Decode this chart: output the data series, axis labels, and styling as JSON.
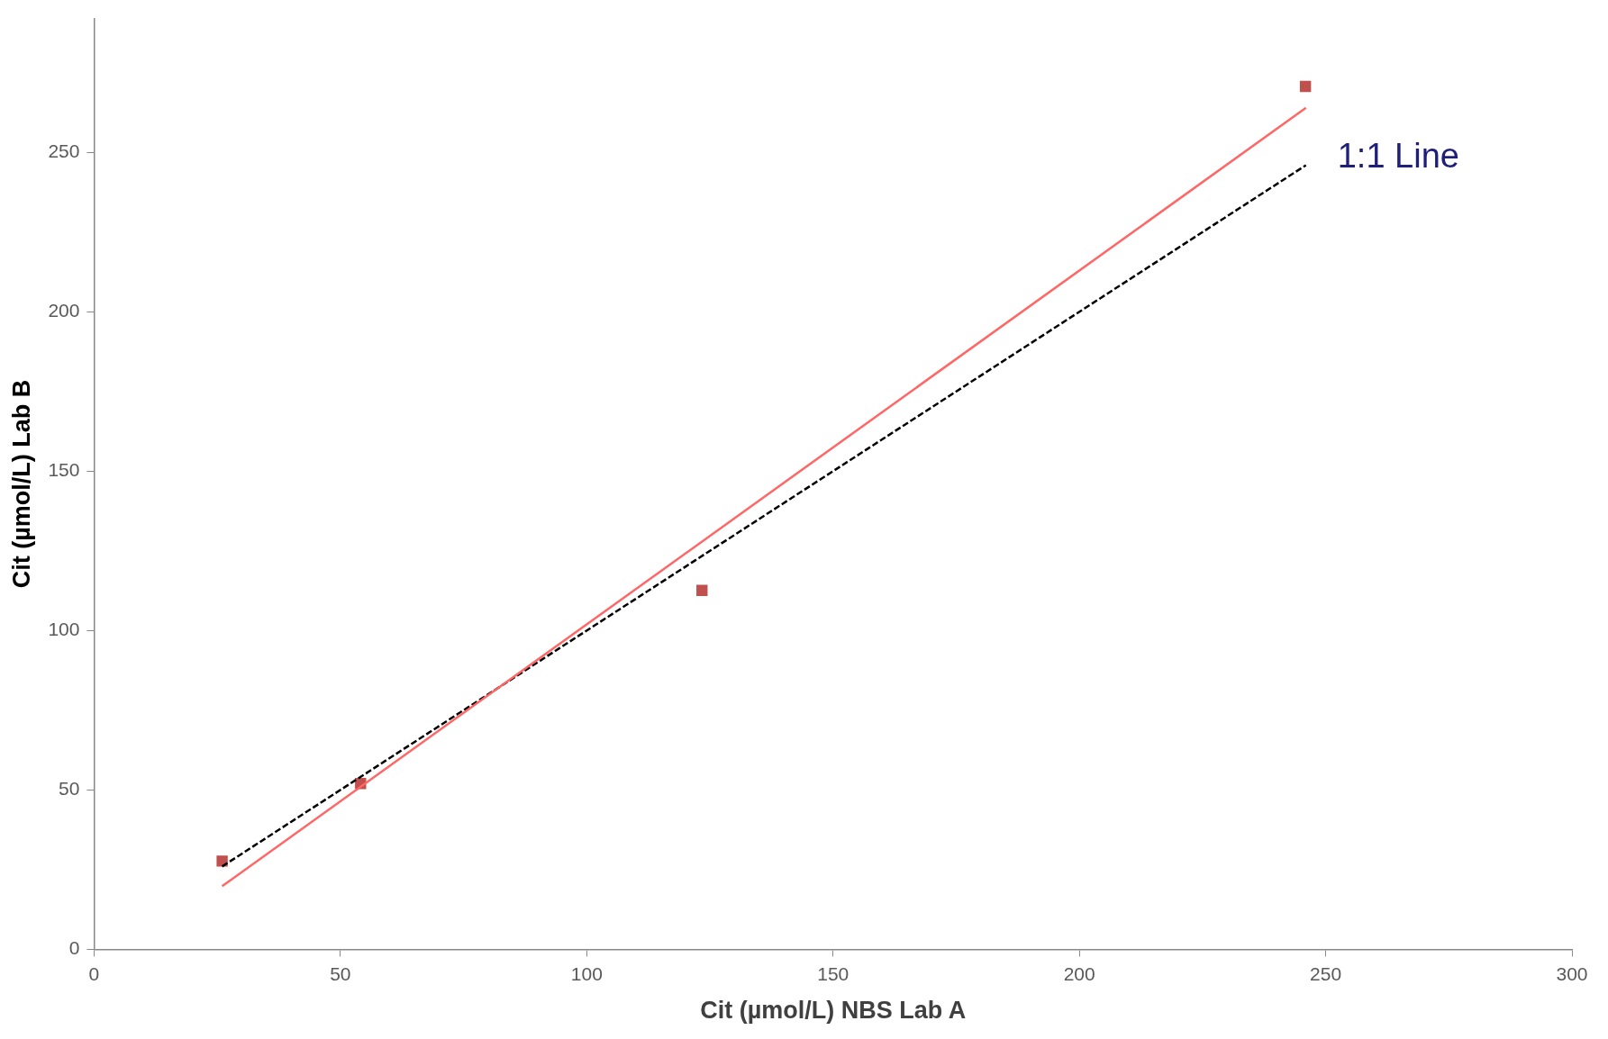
{
  "chart_data": {
    "type": "scatter",
    "xlabel": "Cit (µmol/L) NBS Lab A",
    "ylabel": "Cit (µmol/L) Lab B",
    "xlim": [
      0,
      300
    ],
    "xticks": [
      0,
      50,
      100,
      150,
      200,
      250,
      300
    ],
    "ylim": [
      0,
      292
    ],
    "yticks": [
      0,
      50,
      100,
      150,
      200,
      250
    ],
    "grid": false,
    "legend": false,
    "series": [
      {
        "type": "scatter",
        "color": "#c0504d",
        "marker": "square",
        "x": [
          26,
          54.1,
          123.4,
          245.9
        ],
        "values": [
          27.7,
          52,
          112.6,
          270.7
        ]
      },
      {
        "type": "line",
        "color": "#ff6666",
        "line_style": "solid",
        "marker": "none",
        "x": [
          26,
          246
        ],
        "values": [
          19.8,
          264
        ]
      },
      {
        "type": "line",
        "color": "#000000",
        "line_style": "dashed",
        "marker": "none",
        "x": [
          26,
          246
        ],
        "values": [
          26,
          246
        ]
      }
    ],
    "annotations": [
      {
        "text": "1:1 Line",
        "x": 246,
        "y": 246
      }
    ]
  }
}
